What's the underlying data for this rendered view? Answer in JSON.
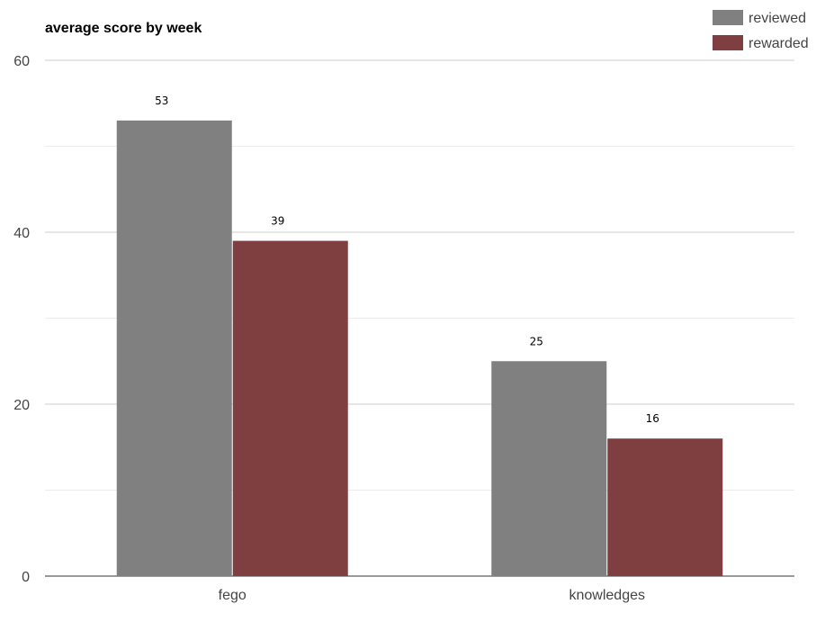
{
  "chart_data": {
    "type": "bar",
    "title": "average score by week",
    "xlabel": "",
    "ylabel": "",
    "categories": [
      "fego",
      "knowledges"
    ],
    "series": [
      {
        "name": "reviewed",
        "values": [
          53,
          25
        ],
        "color": "#808080"
      },
      {
        "name": "rewarded",
        "values": [
          39,
          16
        ],
        "color": "#7f3f41"
      }
    ],
    "ylim": [
      0,
      60
    ],
    "yticks": [
      0,
      20,
      40,
      60
    ],
    "minor_gridlines": [
      10,
      30,
      50
    ],
    "grid": true,
    "legend_position": "top-right",
    "data_labels": true
  }
}
